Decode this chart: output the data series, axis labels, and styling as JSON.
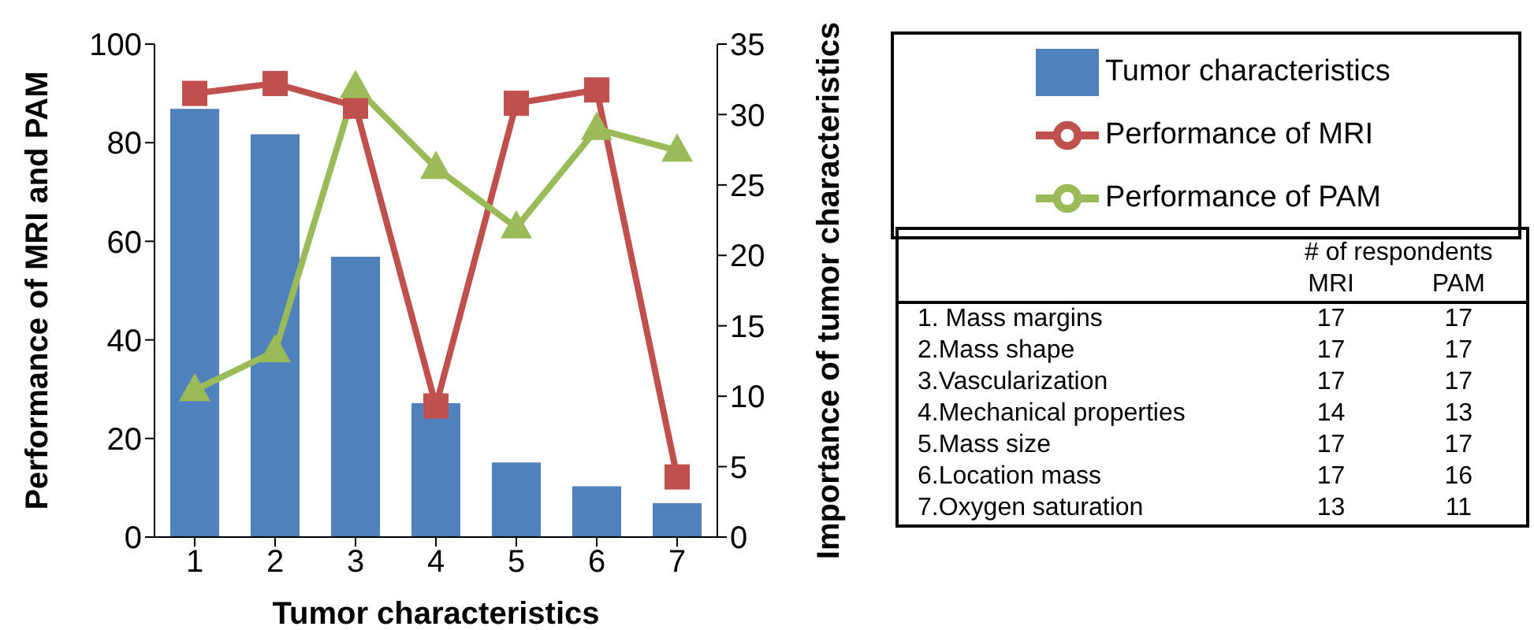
{
  "chart_data": [
    {
      "type": "bar",
      "xlabel": "Tumor characteristics",
      "ylabel": "Performance of MRI and PAM",
      "y2label": "Importance of tumor characteristics",
      "categories": [
        "1",
        "2",
        "3",
        "4",
        "5",
        "6",
        "7"
      ],
      "series": [
        {
          "name": "Tumor characteristics",
          "type": "bar",
          "axis": "y2",
          "color": "#4f81bd",
          "values": [
            30.4,
            28.6,
            19.9,
            9.5,
            5.3,
            3.6,
            2.4
          ]
        },
        {
          "name": "Performance of MRI",
          "type": "line",
          "color": "#c0504d",
          "marker": "square",
          "values": [
            90,
            92,
            87.4,
            26.6,
            88,
            90.7,
            12.2
          ]
        },
        {
          "name": "Performance of PAM",
          "type": "line",
          "color": "#9bbb59",
          "marker": "triangle",
          "values": [
            29.8,
            37.7,
            91.3,
            74.9,
            62.8,
            82.8,
            78.4
          ]
        }
      ],
      "ylim": [
        0,
        100
      ],
      "yticks": [
        0,
        20,
        40,
        60,
        80,
        100
      ],
      "y2lim": [
        0,
        35
      ],
      "y2ticks": [
        0,
        5,
        10,
        15,
        20,
        25,
        30,
        35
      ],
      "grid": false,
      "legend": "top right"
    },
    {
      "type": "other",
      "subtitle": "# of respondents",
      "categories": [
        "1. Mass margins",
        "2.Mass shape",
        "3.Vascularization",
        "4.Mechanical properties",
        "5.Mass size",
        "6.Location mass",
        "7.Oxygen saturation"
      ],
      "series": [
        {
          "name": "MRI",
          "color": "#000000",
          "values": [
            17,
            17,
            17,
            14,
            17,
            17,
            13
          ]
        },
        {
          "name": "PAM",
          "color": "#000000",
          "values": [
            17,
            17,
            17,
            13,
            17,
            16,
            11
          ]
        }
      ],
      "data_labels": true
    }
  ]
}
